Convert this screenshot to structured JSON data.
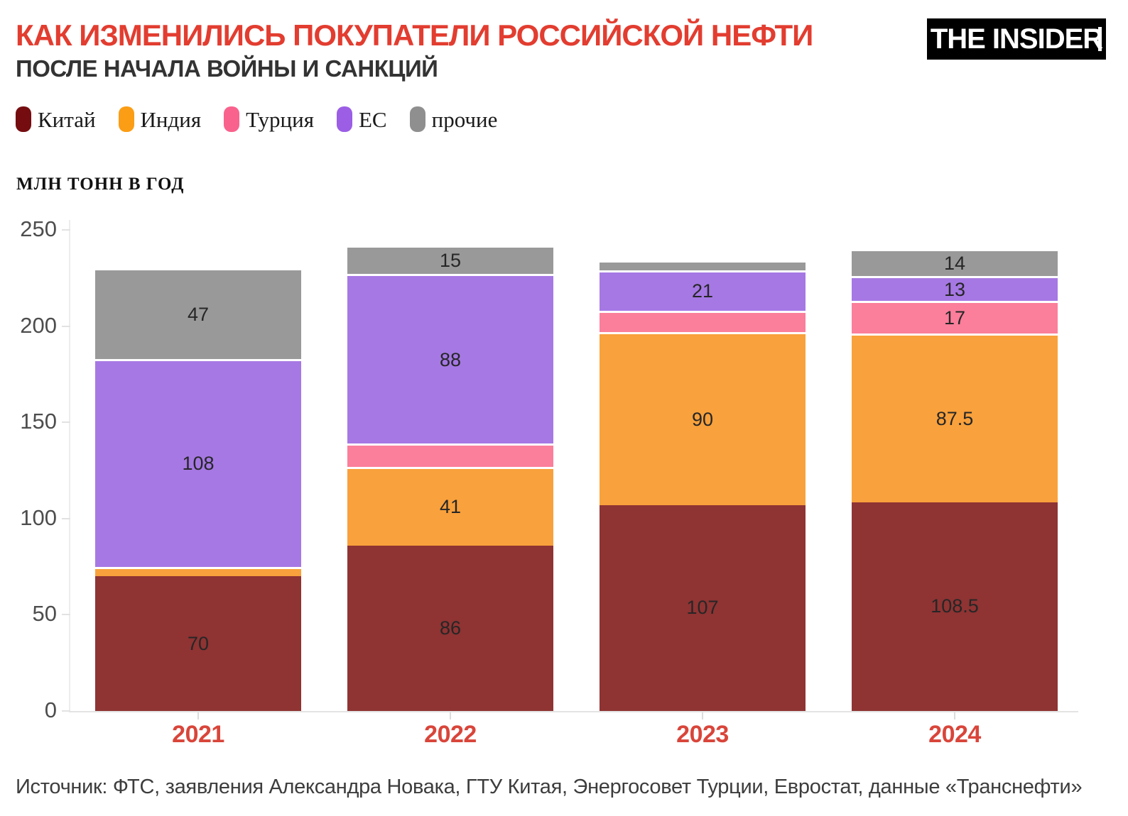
{
  "header": {
    "title": "КАК ИЗМЕНИЛИСЬ ПОКУПАТЕЛИ РОССИЙСКОЙ НЕФТИ",
    "subtitle": "ПОСЛЕ НАЧАЛА ВОЙНЫ И САНКЦИЙ",
    "logo_text": "THE INSIDER"
  },
  "axis_title": "МЛН ТОНН В ГОД",
  "source": "Источник: ФТС, заявления Александра Новака, ГТУ Китая, Энергосовет Турции, Евростат, данные «Транснефти»",
  "colors": {
    "title": "#e23d30",
    "subtitle": "#333333",
    "year_labels": "#d9453a",
    "axis_text": "#4d4d4d",
    "value_labels": "#262626",
    "logo_bg": "#000000",
    "logo_text": "#ffffff",
    "background": "#ffffff"
  },
  "chart_data": {
    "type": "bar",
    "stacked": true,
    "title": "Как изменились покупатели российской нефти после начала войны и санкций",
    "ylabel": "млн тонн в год",
    "xlabel": "",
    "categories": [
      "2021",
      "2022",
      "2023",
      "2024"
    ],
    "series": [
      {
        "name": "Китай",
        "legend_color": "#750d10",
        "bar_color": "#8f3333",
        "values": [
          70,
          86,
          107,
          108.5
        ],
        "labels": [
          "70",
          "86",
          "107",
          "108.5"
        ]
      },
      {
        "name": "Индия",
        "legend_color": "#fb9d15",
        "bar_color": "#f9a13c",
        "values": [
          5,
          41,
          90,
          87.5
        ],
        "labels": [
          "",
          "41",
          "90",
          "87.5"
        ]
      },
      {
        "name": "Турция",
        "legend_color": "#f9628c",
        "bar_color": "#fb7e9b",
        "values": [
          0,
          12,
          11,
          17
        ],
        "labels": [
          "",
          "",
          "",
          "17"
        ]
      },
      {
        "name": "ЕС",
        "legend_color": "#9b5ee5",
        "bar_color": "#a678e4",
        "values": [
          108,
          88,
          21,
          13
        ],
        "labels": [
          "108",
          "88",
          "21",
          "13"
        ]
      },
      {
        "name": "прочие",
        "legend_color": "#8f8f8f",
        "bar_color": "#999999",
        "values": [
          47,
          15,
          5,
          14
        ],
        "labels": [
          "47",
          "15",
          "",
          "14"
        ]
      }
    ],
    "totals": [
      230,
      242,
      234,
      240
    ],
    "yticks": [
      0,
      50,
      100,
      150,
      200,
      250
    ],
    "ylim": [
      0,
      250
    ],
    "grid": false,
    "legend_position": "top-left"
  }
}
